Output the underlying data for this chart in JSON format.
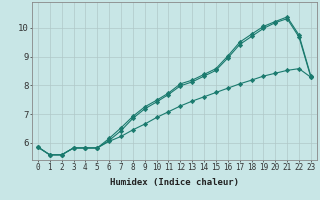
{
  "xlabel": "Humidex (Indice chaleur)",
  "bg_color": "#c8e6e6",
  "grid_color": "#b0c8c8",
  "line_color": "#1a7a6e",
  "xlim": [
    -0.5,
    23.5
  ],
  "ylim": [
    5.4,
    10.9
  ],
  "x": [
    0,
    1,
    2,
    3,
    4,
    5,
    6,
    7,
    8,
    9,
    10,
    11,
    12,
    13,
    14,
    15,
    16,
    17,
    18,
    19,
    20,
    21,
    22,
    23
  ],
  "line1": [
    5.85,
    5.58,
    5.58,
    5.82,
    5.82,
    5.82,
    6.15,
    6.52,
    6.92,
    7.25,
    7.48,
    7.73,
    8.05,
    8.18,
    8.38,
    8.58,
    9.02,
    9.5,
    9.78,
    10.05,
    10.22,
    10.38,
    9.75,
    8.32
  ],
  "line2": [
    5.85,
    5.58,
    5.58,
    5.82,
    5.82,
    5.82,
    6.08,
    6.42,
    6.85,
    7.18,
    7.42,
    7.68,
    7.98,
    8.12,
    8.32,
    8.52,
    8.95,
    9.42,
    9.7,
    9.98,
    10.18,
    10.32,
    9.68,
    8.28
  ],
  "line3": [
    5.85,
    5.58,
    5.58,
    5.82,
    5.82,
    5.82,
    6.05,
    6.22,
    6.45,
    6.65,
    6.88,
    7.08,
    7.28,
    7.45,
    7.6,
    7.75,
    7.9,
    8.05,
    8.18,
    8.32,
    8.42,
    8.52,
    8.58,
    8.28
  ],
  "xtick_labels": [
    "0",
    "1",
    "2",
    "3",
    "4",
    "5",
    "6",
    "7",
    "8",
    "9",
    "10",
    "11",
    "12",
    "13",
    "14",
    "15",
    "16",
    "17",
    "18",
    "19",
    "20",
    "21",
    "22",
    "23"
  ],
  "ytick_values": [
    6,
    7,
    8,
    9,
    10
  ],
  "xlabel_fontsize": 6.5,
  "tick_fontsize": 5.5,
  "ytick_fontsize": 6.5
}
